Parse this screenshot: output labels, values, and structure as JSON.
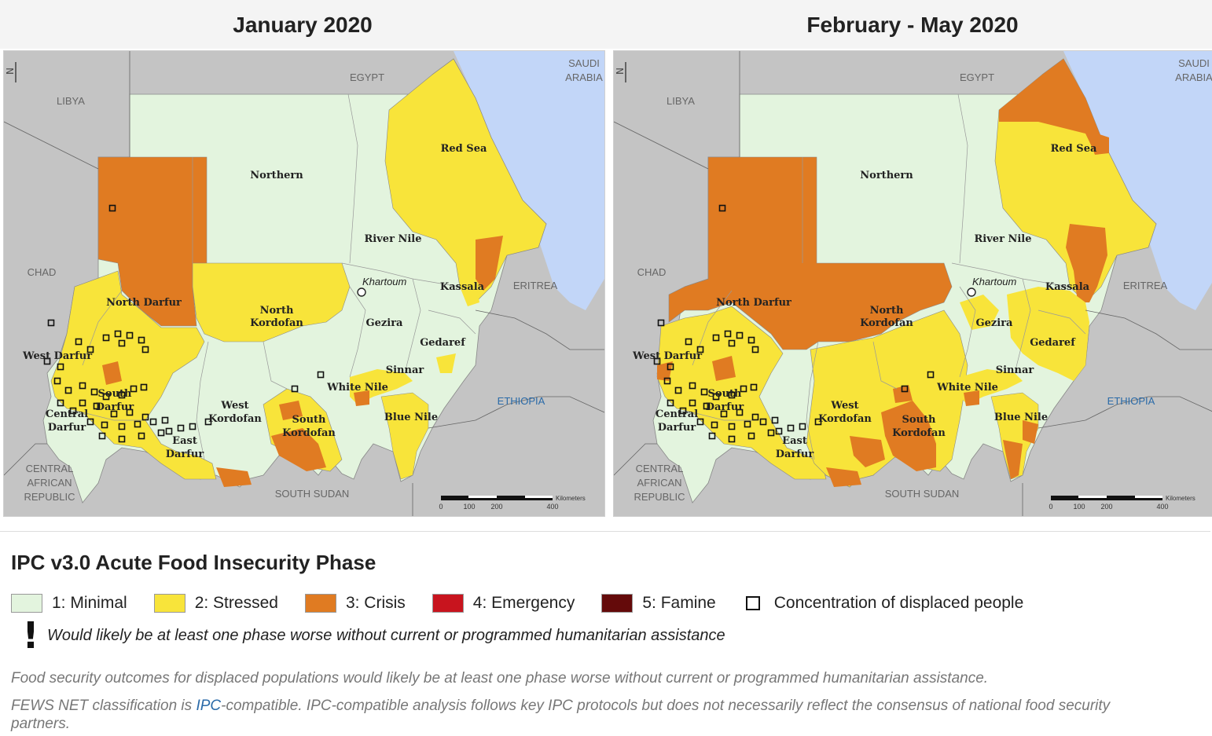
{
  "maps": [
    {
      "title": "January 2020",
      "labels": {
        "libya": "LIBYA",
        "egypt": "EGYPT",
        "saudi": "SAUDI",
        "arabia": "ARABIA",
        "chad": "CHAD",
        "eritrea": "ERITREA",
        "ethiopia": "ETHIOPIA",
        "car1": "CENTRAL",
        "car2": "AFRICAN",
        "car3": "REPUBLIC",
        "south_sudan": "SOUTH SUDAN",
        "northern": "Northern",
        "red_sea": "Red Sea",
        "river_nile": "River Nile",
        "khartoum": "Khartoum",
        "kassala": "Kassala",
        "north_darfur": "North Darfur",
        "north_kordofan_1": "North",
        "north_kordofan_2": "Kordofan",
        "gezira": "Gezira",
        "gedaref": "Gedaref",
        "west_darfur": "West Darfur",
        "sinnar": "Sinnar",
        "white_nile": "White Nile",
        "south_darfur_1": "South",
        "south_darfur_2": "Darfur",
        "central_darfur_1": "Central",
        "central_darfur_2": "Darfur",
        "west_kordofan_1": "West",
        "west_kordofan_2": "Kordofan",
        "south_kordofan_1": "South",
        "south_kordofan_2": "Kordofan",
        "blue_nile": "Blue Nile",
        "east_darfur_1": "East",
        "east_darfur_2": "Darfur",
        "north_arrow": "N"
      },
      "scale": {
        "ticks": [
          "0",
          "100",
          "200",
          "400"
        ],
        "unit": "Kilometers"
      }
    },
    {
      "title": "February - May 2020",
      "labels": {
        "libya": "LIBYA",
        "egypt": "EGYPT",
        "saudi": "SAUDI",
        "arabia": "ARABIA",
        "chad": "CHAD",
        "eritrea": "ERITREA",
        "ethiopia": "ETHIOPIA",
        "car1": "CENTRAL",
        "car2": "AFRICAN",
        "car3": "REPUBLIC",
        "south_sudan": "SOUTH SUDAN",
        "northern": "Northern",
        "red_sea": "Red Sea",
        "river_nile": "River Nile",
        "khartoum": "Khartoum",
        "kassala": "Kassala",
        "north_darfur": "North Darfur",
        "north_kordofan_1": "North",
        "north_kordofan_2": "Kordofan",
        "gezira": "Gezira",
        "gedaref": "Gedaref",
        "west_darfur": "West Darfur",
        "sinnar": "Sinnar",
        "white_nile": "White Nile",
        "south_darfur_1": "South",
        "south_darfur_2": "Darfur",
        "central_darfur_1": "Central",
        "central_darfur_2": "Darfur",
        "west_kordofan_1": "West",
        "west_kordofan_2": "Kordofan",
        "south_kordofan_1": "South",
        "south_kordofan_2": "Kordofan",
        "blue_nile": "Blue Nile",
        "east_darfur_1": "East",
        "east_darfur_2": "Darfur",
        "north_arrow": "N"
      },
      "scale": {
        "ticks": [
          "0",
          "100",
          "200",
          "400"
        ],
        "unit": "Kilometers"
      }
    }
  ],
  "legend": {
    "title": "IPC v3.0 Acute Food Insecurity Phase",
    "phases": [
      {
        "label": "1: Minimal",
        "color": "#e3f4de"
      },
      {
        "label": "2: Stressed",
        "color": "#f8e43a"
      },
      {
        "label": "3: Crisis",
        "color": "#e07b22"
      },
      {
        "label": "4: Emergency",
        "color": "#c8141e"
      },
      {
        "label": "5: Famine",
        "color": "#640a0a"
      }
    ],
    "displaced_label": "Concentration of displaced people",
    "exclamation_symbol": "!",
    "exclamation_label": "Would likely be at least one phase worse without current or programmed humanitarian assistance"
  },
  "notes": {
    "displaced_note": "Food security outcomes for displaced populations would likely be at least one phase worse without current or programmed humanitarian assistance.",
    "fews_pre": "FEWS NET classification is ",
    "fews_link": "IPC",
    "fews_post": "-compatible. IPC-compatible analysis follows key IPC protocols but does not necessarily reflect the consensus of national food security",
    "fews_line2": "partners."
  },
  "colors": {
    "minimal": "#e3f4de",
    "stressed": "#f8e43a",
    "crisis": "#e07b22",
    "water": "#c2d6f8",
    "outside": "#c4c4c4"
  }
}
